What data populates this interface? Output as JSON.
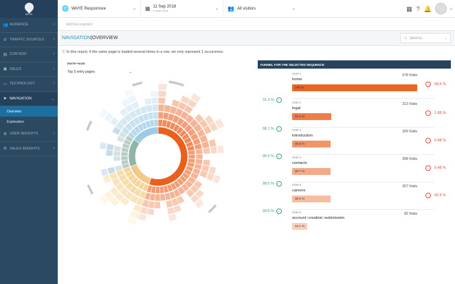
{
  "sidebar": {
    "beta": "BETA",
    "items": [
      {
        "icon": "users-icon",
        "glyph": "👥",
        "label": "AUDIENCE"
      },
      {
        "icon": "traffic-icon",
        "glyph": "⇄",
        "label": "TRAFFIC SOURCES"
      },
      {
        "icon": "content-icon",
        "glyph": "▤",
        "label": "CONTENT"
      },
      {
        "icon": "sales-icon",
        "glyph": "▣",
        "label": "SALES"
      },
      {
        "icon": "technology-icon",
        "glyph": "▭",
        "label": "TECHNOLOGY"
      },
      {
        "icon": "navigation-icon",
        "glyph": "➤",
        "label": "NAVIGATION"
      }
    ],
    "sub_items": [
      "Overview",
      "Exploration"
    ],
    "bottom_items": [
      {
        "icon": "user-insights-icon",
        "glyph": "⚙",
        "label": "USER INSIGHTS"
      },
      {
        "icon": "sales-insights-icon",
        "glyph": "⚙",
        "label": "SALES INSIGHTS"
      }
    ]
  },
  "topbar": {
    "site": "WAYE Responsive",
    "date": "11 Sep 2018",
    "date_sub": "6 Sept 2018",
    "segment": "All visitors"
  },
  "segment_bar": {
    "placeholder": "Add live segment"
  },
  "title": {
    "section": "NAVIGATION",
    "separator": " | ",
    "page": "OVERVIEW"
  },
  "send_to": "Send to...",
  "info": "In this report, if the same page is loaded several times in a row, we only represent 1 occurrence.",
  "entry": {
    "label": "ENTRY PAGE",
    "selected": "Top 5 entry pages"
  },
  "funnel": {
    "header": "FUNNEL FOR THE SELECTED SEQUENCE",
    "steps": [
      {
        "num": "STEP 1",
        "name": "home",
        "visits": "678 Visits",
        "bar": "100 %",
        "pct": 100,
        "exit": "68.6 %",
        "conv": "31.4 %",
        "color": "#ea6424"
      },
      {
        "num": "STEP 2",
        "name": "legal",
        "visits": "213 Visits",
        "bar": "31.4 %",
        "pct": 31.4,
        "exit": "1.88 %",
        "conv": "98.1 %",
        "color": "#ef7d49"
      },
      {
        "num": "STEP 3",
        "name": "introduction",
        "visits": "209 Visits",
        "bar": "30.8 %",
        "pct": 30.8,
        "exit": "0.48 %",
        "conv": "99.5 %",
        "color": "#f19566"
      },
      {
        "num": "STEP 4",
        "name": "contacts",
        "visits": "208 Visits",
        "bar": "30.7 %",
        "pct": 30.7,
        "exit": "0.48 %",
        "conv": "99.5 %",
        "color": "#f4aa86"
      },
      {
        "num": "STEP 5",
        "name": "careers",
        "visits": "207 Visits",
        "bar": "30.5 %",
        "pct": 30.5,
        "exit": "60.4 %",
        "conv": "39.6 %",
        "color": "#f6bd9f"
      },
      {
        "num": "STEP 6",
        "name": "account::creation::submission",
        "visits": "82 Visits",
        "bar": "12.1 %",
        "pct": 12.1,
        "exit": "",
        "conv": "",
        "color": "#f8cfb9"
      }
    ]
  }
}
